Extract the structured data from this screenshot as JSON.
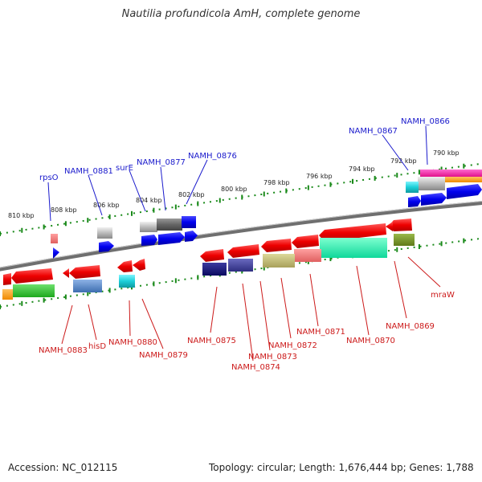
{
  "title": "Nautilia profundicola AmH, complete genome",
  "footer": {
    "accession": "Accession: NC_012115",
    "summary": "Topology: circular; Length: 1,676,444 bp; Genes: 1,788"
  },
  "kbp_labels": [
    "790 kbp",
    "792 kbp",
    "794 kbp",
    "796 kbp",
    "798 kbp",
    "800 kbp",
    "802 kbp",
    "804 kbp",
    "806 kbp",
    "808 kbp",
    "810 kbp"
  ],
  "upper_labels": [
    "NAMH_0866",
    "NAMH_0867",
    "NAMH_0876",
    "NAMH_0877",
    "surE",
    "NAMH_0881",
    "rpsO"
  ],
  "lower_labels": [
    "mraW",
    "NAMH_0869",
    "NAMH_0870",
    "NAMH_0871",
    "NAMH_0872",
    "NAMH_0873",
    "NAMH_0874",
    "NAMH_0875",
    "NAMH_0879",
    "NAMH_0880",
    "hisD",
    "NAMH_0883"
  ],
  "colors": {
    "upper_label": "#1a1acc",
    "lower_label": "#cc1a1a",
    "cds_forward": "#0000ee",
    "cds_reverse": "#ee1111",
    "backbone": "#777777",
    "tick": "#1a8a1a"
  }
}
